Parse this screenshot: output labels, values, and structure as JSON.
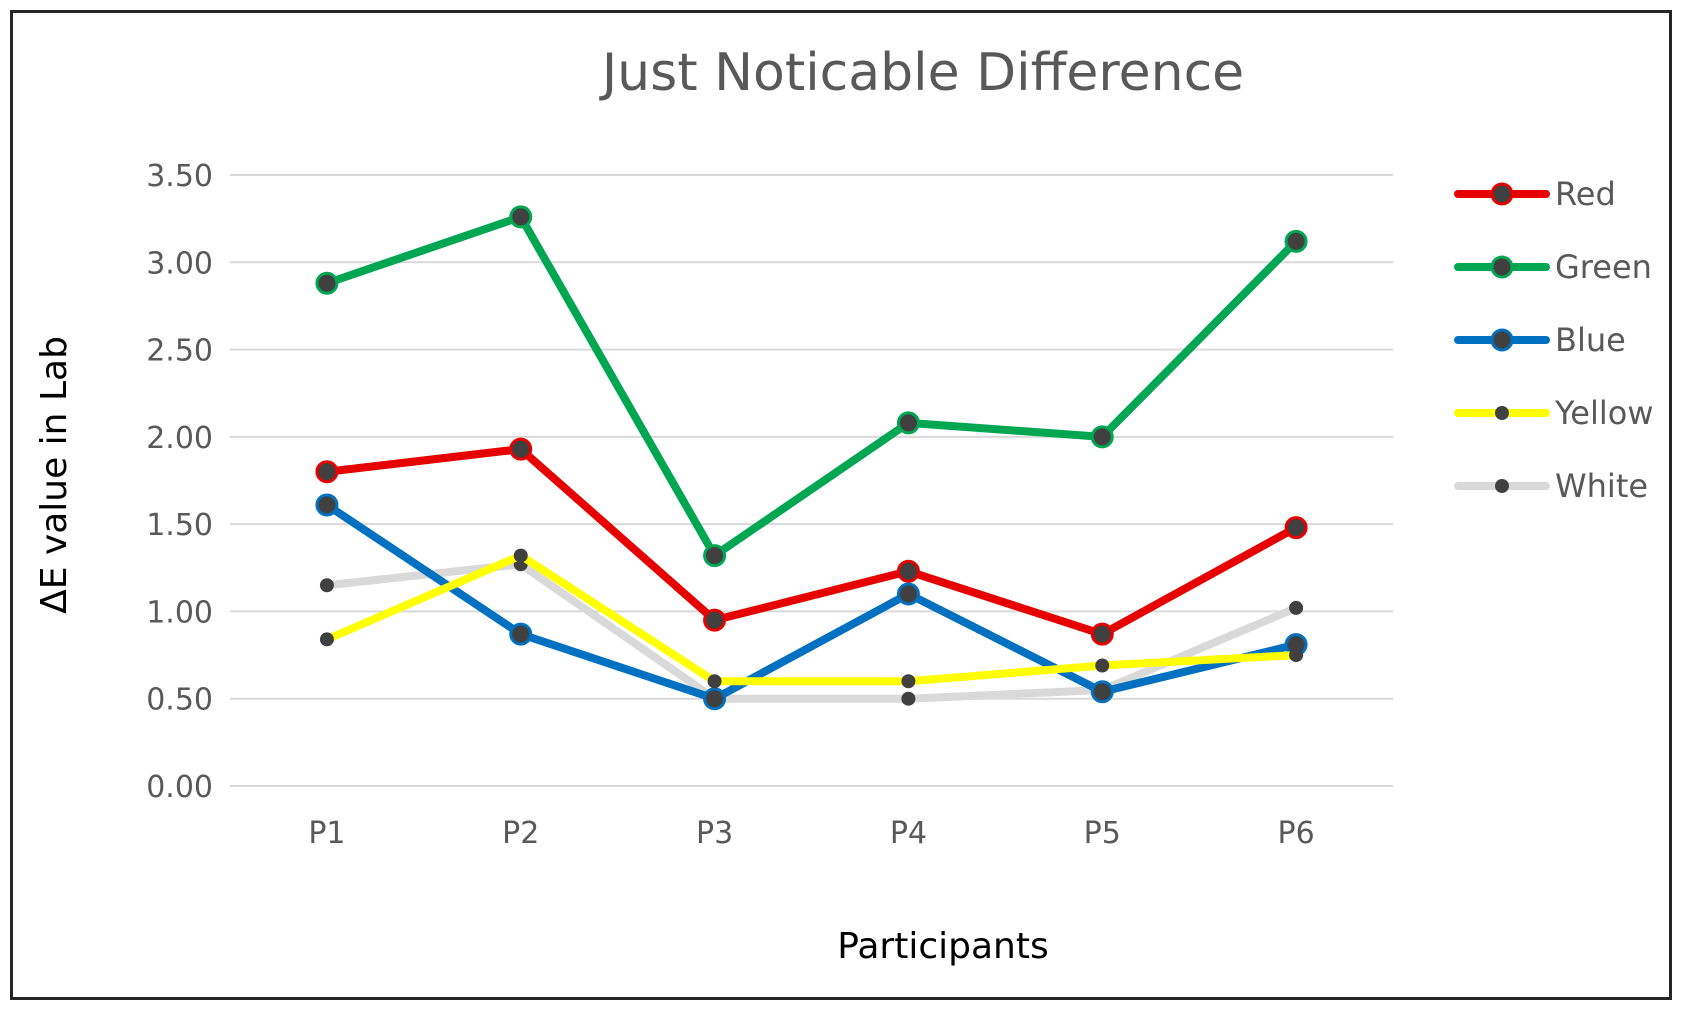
{
  "chart_data": {
    "type": "line",
    "title": "Just Noticable Difference",
    "xlabel": "Participants",
    "ylabel": "ΔE value in Lab",
    "categories": [
      "P1",
      "P2",
      "P3",
      "P4",
      "P5",
      "P6"
    ],
    "ylim": [
      0,
      3.5
    ],
    "yticks": [
      "0.00",
      "0.50",
      "1.00",
      "1.50",
      "2.00",
      "2.50",
      "3.00",
      "3.50"
    ],
    "grid": true,
    "legend_position": "right",
    "series": [
      {
        "name": "Red",
        "color": "#e60000",
        "values": [
          1.8,
          1.93,
          0.95,
          1.23,
          0.87,
          1.48
        ]
      },
      {
        "name": "Green",
        "color": "#00a651",
        "values": [
          2.88,
          3.26,
          1.32,
          2.08,
          2.0,
          3.12
        ]
      },
      {
        "name": "Blue",
        "color": "#0070c0",
        "values": [
          1.61,
          0.87,
          0.5,
          1.1,
          0.54,
          0.81
        ]
      },
      {
        "name": "Yellow",
        "color": "#ffff00",
        "values": [
          0.84,
          1.32,
          0.6,
          0.6,
          0.69,
          0.75
        ]
      },
      {
        "name": "White",
        "color": "#d9d9d9",
        "values": [
          1.15,
          1.27,
          0.5,
          0.5,
          0.55,
          1.02
        ]
      }
    ]
  }
}
